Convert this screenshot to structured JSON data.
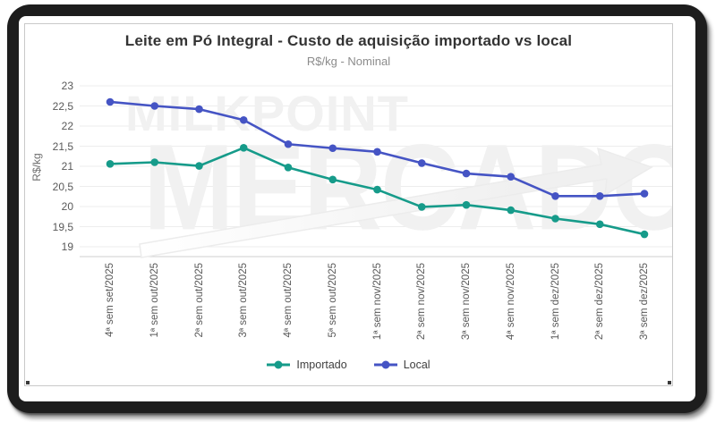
{
  "watermark": {
    "line1": "MILKPOINT",
    "line2": "MERCADO"
  },
  "chart_data": {
    "type": "line",
    "title": "Leite em Pó Integral - Custo de aquisição importado vs local",
    "subtitle": "R$/kg - Nominal",
    "ylabel": "R$/kg",
    "ylim": [
      19,
      23
    ],
    "ytick_step": 0.5,
    "ytick_labels": [
      "23",
      "22,5",
      "22",
      "21,5",
      "21",
      "20,5",
      "20",
      "19,5",
      "19"
    ],
    "grid": true,
    "legend_position": "bottom",
    "categories": [
      "4ª sem set/2025",
      "1ª sem out/2025",
      "2ª sem out/2025",
      "3ª sem out/2025",
      "4ª sem out/2025",
      "5ª sem out/2025",
      "1ª sem nov/2025",
      "2ª sem nov/2025",
      "3ª sem nov/2025",
      "4ª sem nov/2025",
      "1ª sem dez/2025",
      "2ª sem dez/2025",
      "3ª sem dez/2025"
    ],
    "series": [
      {
        "name": "Importado",
        "color": "#169b8a",
        "values": [
          21.06,
          21.1,
          21.01,
          21.46,
          20.97,
          20.67,
          20.42,
          19.99,
          20.04,
          19.91,
          19.7,
          19.56,
          19.31
        ]
      },
      {
        "name": "Local",
        "color": "#4554c4",
        "values": [
          22.6,
          22.5,
          22.42,
          22.15,
          21.55,
          21.45,
          21.36,
          21.08,
          20.82,
          20.74,
          20.26,
          20.26,
          20.32
        ]
      }
    ]
  }
}
